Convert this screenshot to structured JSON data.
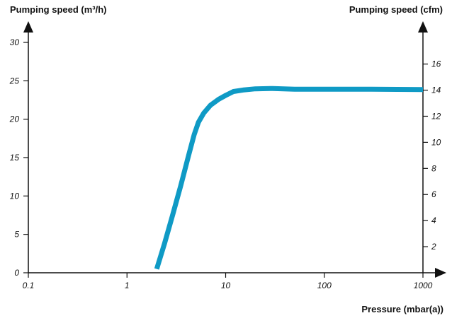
{
  "chart_data": {
    "type": "line",
    "title": "",
    "xlabel": "Pressure (mbar(a))",
    "ylabel": "Pumping speed (m³/h)",
    "y2label": "Pumping speed (cfm)",
    "x_scale": "log",
    "xlim": [
      0.1,
      1000
    ],
    "ylim": [
      0,
      30
    ],
    "y2lim": [
      0,
      17.66
    ],
    "x_ticks": [
      "0.1",
      "1",
      "10",
      "100",
      "1000"
    ],
    "y_ticks": [
      "0",
      "5",
      "10",
      "15",
      "20",
      "25",
      "30"
    ],
    "y2_ticks": [
      "2",
      "4",
      "6",
      "8",
      "10",
      "12",
      "14",
      "16"
    ],
    "grid": false,
    "series": [
      {
        "x": [
          2,
          2.4,
          2.9,
          3.5,
          4.2,
          4.8,
          5.3,
          6,
          7,
          8.5,
          10,
          12,
          15,
          20,
          30,
          50,
          100,
          300,
          1000
        ],
        "y": [
          0.5,
          3.8,
          7.5,
          11.3,
          15.2,
          18,
          19.6,
          20.8,
          21.8,
          22.6,
          23.1,
          23.6,
          23.8,
          23.95,
          24,
          23.9,
          23.9,
          23.9,
          23.85
        ]
      }
    ],
    "colors": {
      "line": "#0f9ac5",
      "axis": "#111111"
    }
  }
}
